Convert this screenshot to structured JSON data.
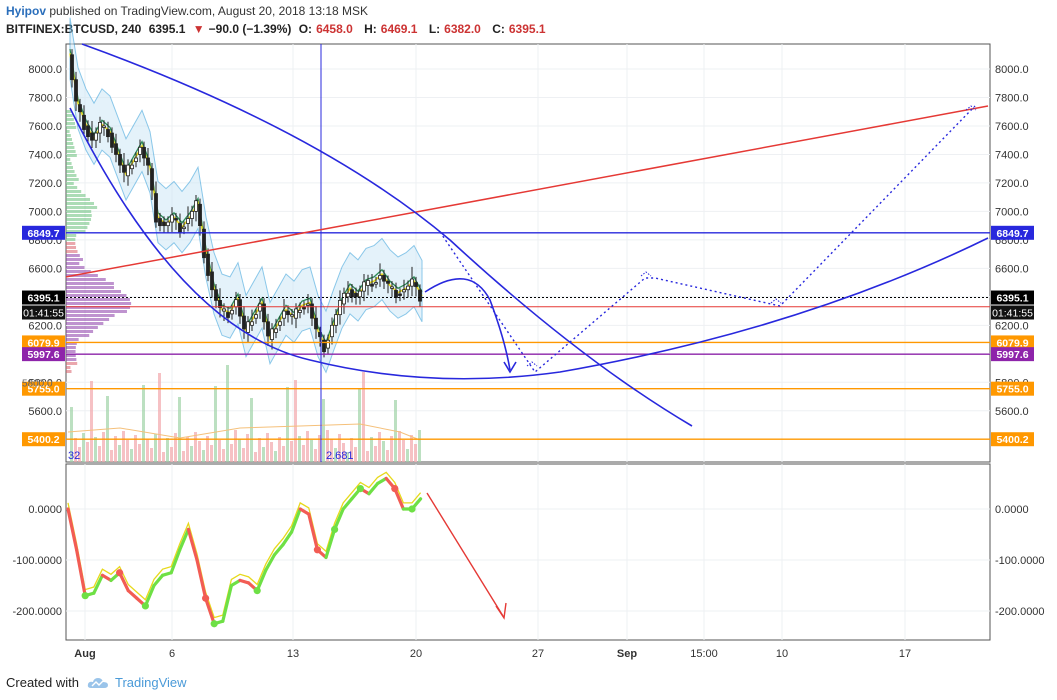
{
  "header": {
    "author": "Hyipov",
    "published_text": "published on TradingView.com, August 20, 2018 13:18 MSK",
    "symbol": "BITFINEX:BTCUSD, 240",
    "last": "6395.1",
    "change": "−90.0 (−1.39%)",
    "o_label": "O:",
    "o_value": "6458.0",
    "h_label": "H:",
    "h_value": "6469.1",
    "l_label": "L:",
    "l_value": "6382.0",
    "c_label": "C:",
    "c_value": "6395.1"
  },
  "footer": {
    "created_with": "Created with",
    "brand": "TradingView"
  },
  "chart_data": [
    {
      "type": "candlestick",
      "symbol": "BITFINEX:BTCUSD",
      "timeframe": "240",
      "y_ticks": [
        5600,
        5800,
        6000,
        6200,
        6400,
        6600,
        6800,
        7000,
        7200,
        7400,
        7600,
        7800,
        8000
      ],
      "y_tick_labels": [
        "5600.0",
        "5800.0",
        "6000.0",
        "6200.0",
        "6400.0",
        "6600.0",
        "6800.0",
        "7000.0",
        "7200.0",
        "7400.0",
        "7600.0",
        "7800.0",
        "8000.0"
      ],
      "ylim": [
        5380,
        8140
      ],
      "x_tick_labels": [
        "Aug",
        "6",
        "13",
        "20",
        "27",
        "Sep",
        "15:00",
        "10",
        "17"
      ],
      "close_path": [
        8100,
        7750,
        7600,
        7500,
        7600,
        7550,
        7400,
        7250,
        7350,
        7450,
        7300,
        6950,
        6900,
        6950,
        6880,
        6950,
        7050,
        6700,
        6450,
        6300,
        6280,
        6380,
        6150,
        6250,
        6350,
        6100,
        6200,
        6300,
        6250,
        6330,
        6350,
        6150,
        6040,
        6200,
        6350,
        6450,
        6400,
        6480,
        6500,
        6550,
        6470,
        6420,
        6450,
        6500,
        6395
      ],
      "horizontal_levels": [
        {
          "label": "6849.7",
          "value": 6849.7,
          "color": "#2828dd"
        },
        {
          "label": "6395.1",
          "value": 6395.1,
          "color": "#000000"
        },
        {
          "label": "6079.9",
          "value": 6079.9,
          "color": "#ff9800"
        },
        {
          "label": "5997.6",
          "value": 5997.6,
          "color": "#8e24aa"
        },
        {
          "label": "5755.0",
          "value": 5755.0,
          "color": "#ff9800"
        },
        {
          "label": "5400.2",
          "value": 5400.2,
          "color": "#ff9800"
        }
      ],
      "countdown_label": "01:41:55",
      "volume_labels": [
        "32",
        "2.681"
      ],
      "partial_label": "5800.0"
    },
    {
      "type": "line",
      "name": "oscillator",
      "y_ticks": [
        0,
        -100,
        -200
      ],
      "y_tick_labels": [
        "0.0000",
        "-100.0000",
        "-200.0000"
      ],
      "ylim": [
        -240,
        70
      ],
      "values": [
        0,
        -80,
        -170,
        -165,
        -130,
        -140,
        -125,
        -160,
        -175,
        -190,
        -150,
        -130,
        -125,
        -80,
        -40,
        -100,
        -175,
        -225,
        -220,
        -150,
        -140,
        -145,
        -160,
        -120,
        -90,
        -70,
        -45,
        0,
        -10,
        -80,
        -95,
        -40,
        0,
        20,
        40,
        30,
        50,
        60,
        40,
        0,
        0,
        20
      ]
    }
  ]
}
